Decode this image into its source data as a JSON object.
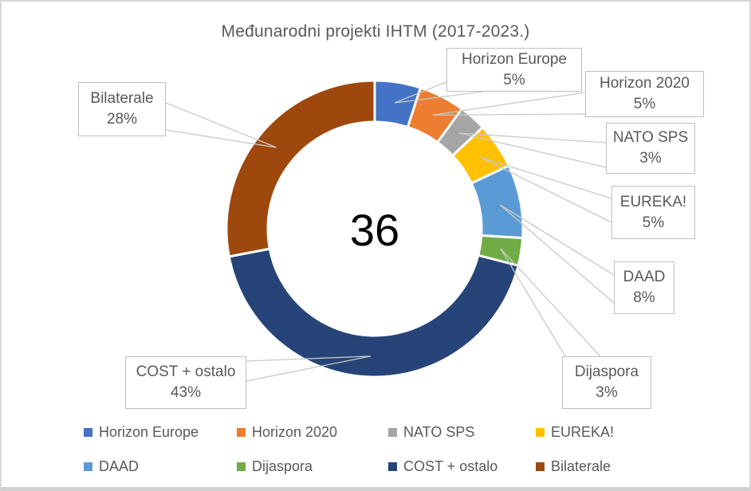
{
  "chart_data": {
    "type": "doughnut",
    "title": "Međunarodni projekti IHTM (2017-2023.)",
    "center_label": "36",
    "total_visible": "36",
    "legend_position": "bottom",
    "grid": false,
    "categories": [
      "Horizon Europe",
      "Horizon 2020",
      "NATO SPS",
      "EUREKA!",
      "DAAD",
      "Dijaspora",
      "COST + ostalo",
      "Bilaterale"
    ],
    "values_pct": [
      5,
      5,
      3,
      5,
      8,
      3,
      43,
      28
    ],
    "colors": [
      "#4472C4",
      "#ED7D31",
      "#A5A5A5",
      "#FFC000",
      "#5B9BD5",
      "#70AD47",
      "#264478",
      "#9E480E"
    ],
    "callouts": [
      {
        "label": "Horizon Europe",
        "pct": "5%"
      },
      {
        "label": "Horizon 2020",
        "pct": "5%"
      },
      {
        "label": "NATO SPS",
        "pct": "3%"
      },
      {
        "label": "EUREKA!",
        "pct": "5%"
      },
      {
        "label": "DAAD",
        "pct": "8%"
      },
      {
        "label": "Dijaspora",
        "pct": "3%"
      },
      {
        "label": "COST + ostalo",
        "pct": "43%"
      },
      {
        "label": "Bilaterale",
        "pct": "28%"
      }
    ]
  }
}
